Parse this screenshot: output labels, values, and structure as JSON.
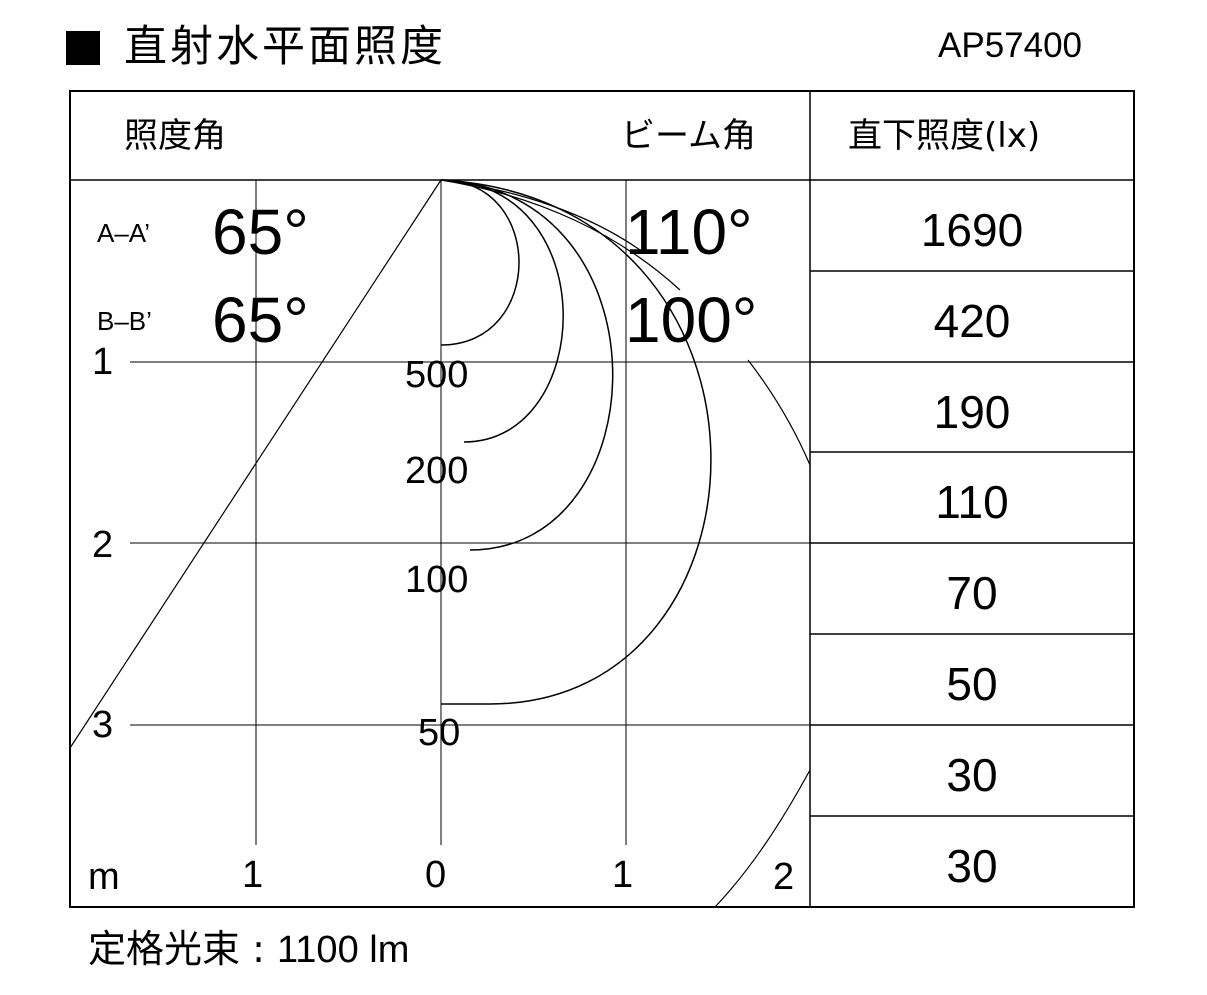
{
  "title": "直射水平面照度",
  "model": "AP57400",
  "header": {
    "angle_label": "照度角",
    "beam_label": "ビーム角",
    "direct_label": "直下照度(lx)"
  },
  "sections": [
    {
      "name": "A–A’",
      "angle": "65°",
      "beam": "110°"
    },
    {
      "name": "B–B’",
      "angle": "65°",
      "beam": "100°"
    }
  ],
  "direct_illuminance": [
    "1690",
    "420",
    "190",
    "110",
    "70",
    "50",
    "30",
    "30"
  ],
  "depth_labels": [
    "1",
    "2",
    "3"
  ],
  "axis": {
    "unit": "m",
    "ticks": [
      "1",
      "0",
      "1",
      "2"
    ]
  },
  "contours": [
    "500",
    "200",
    "100",
    "50"
  ],
  "footer": {
    "label": "定格光束",
    "value": "1100 lm"
  }
}
